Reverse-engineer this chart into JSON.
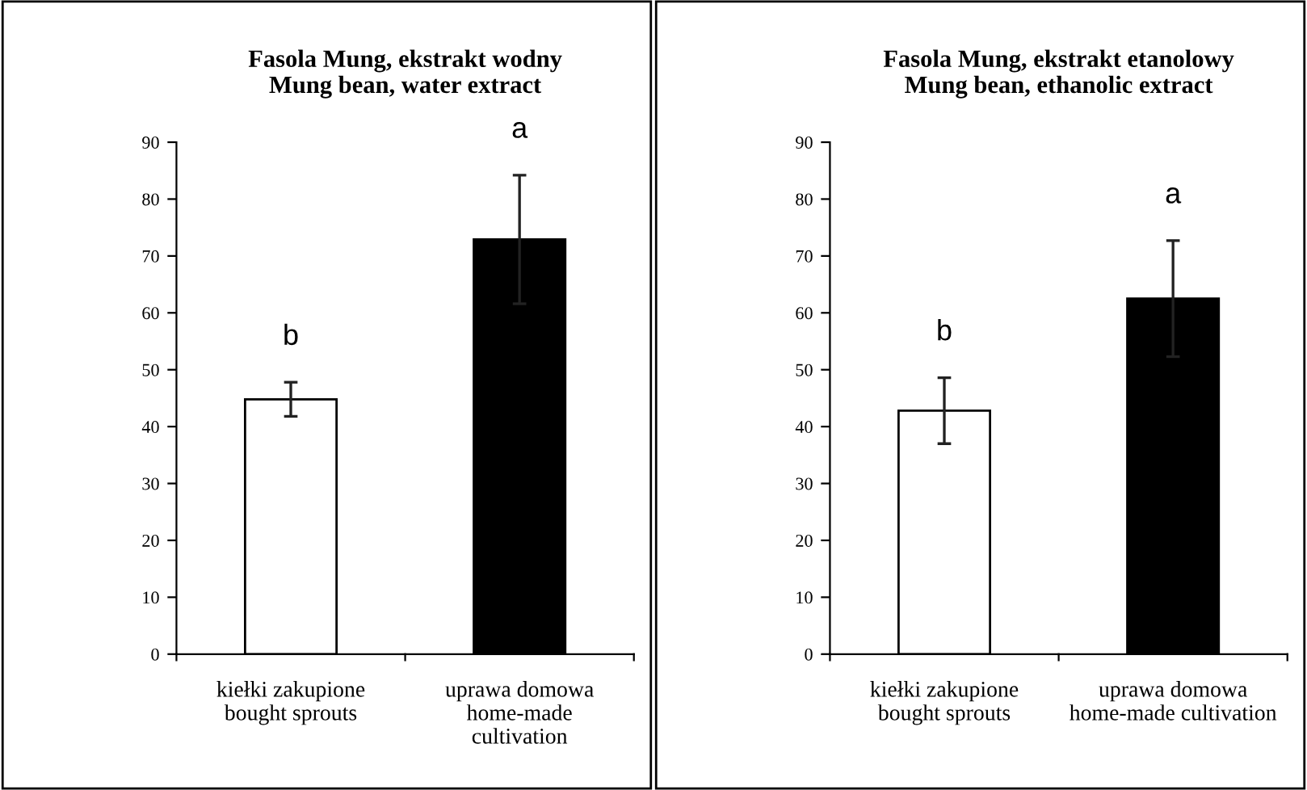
{
  "chart_data": [
    {
      "type": "bar",
      "title": "Fasola Mung, ekstrakt wodny\nMung bean, water extract",
      "categories": [
        "kiełki zakupione\nbought sprouts",
        "uprawa domowa\nhome-made\ncultivation"
      ],
      "values": [
        44.8,
        72.9
      ],
      "colors": [
        "#ffffff",
        "#000000"
      ],
      "errors": [
        3.0,
        11.3
      ],
      "ylim": [
        0,
        90
      ],
      "yticks": [
        0,
        10,
        20,
        30,
        40,
        50,
        60,
        70,
        80,
        90
      ],
      "grid": false,
      "legend": false,
      "annotations": [
        "b",
        "a"
      ]
    },
    {
      "type": "bar",
      "title": "Fasola Mung, ekstrakt etanolowy\nMung bean, ethanolic extract",
      "categories": [
        "kiełki zakupione\nbought sprouts",
        "uprawa domowa\nhome-made cultivation"
      ],
      "values": [
        42.8,
        62.5
      ],
      "colors": [
        "#ffffff",
        "#000000"
      ],
      "errors": [
        5.8,
        10.2
      ],
      "ylim": [
        0,
        90
      ],
      "yticks": [
        0,
        10,
        20,
        30,
        40,
        50,
        60,
        70,
        80,
        90
      ],
      "grid": false,
      "legend": false,
      "annotations": [
        "b",
        "a"
      ]
    }
  ]
}
